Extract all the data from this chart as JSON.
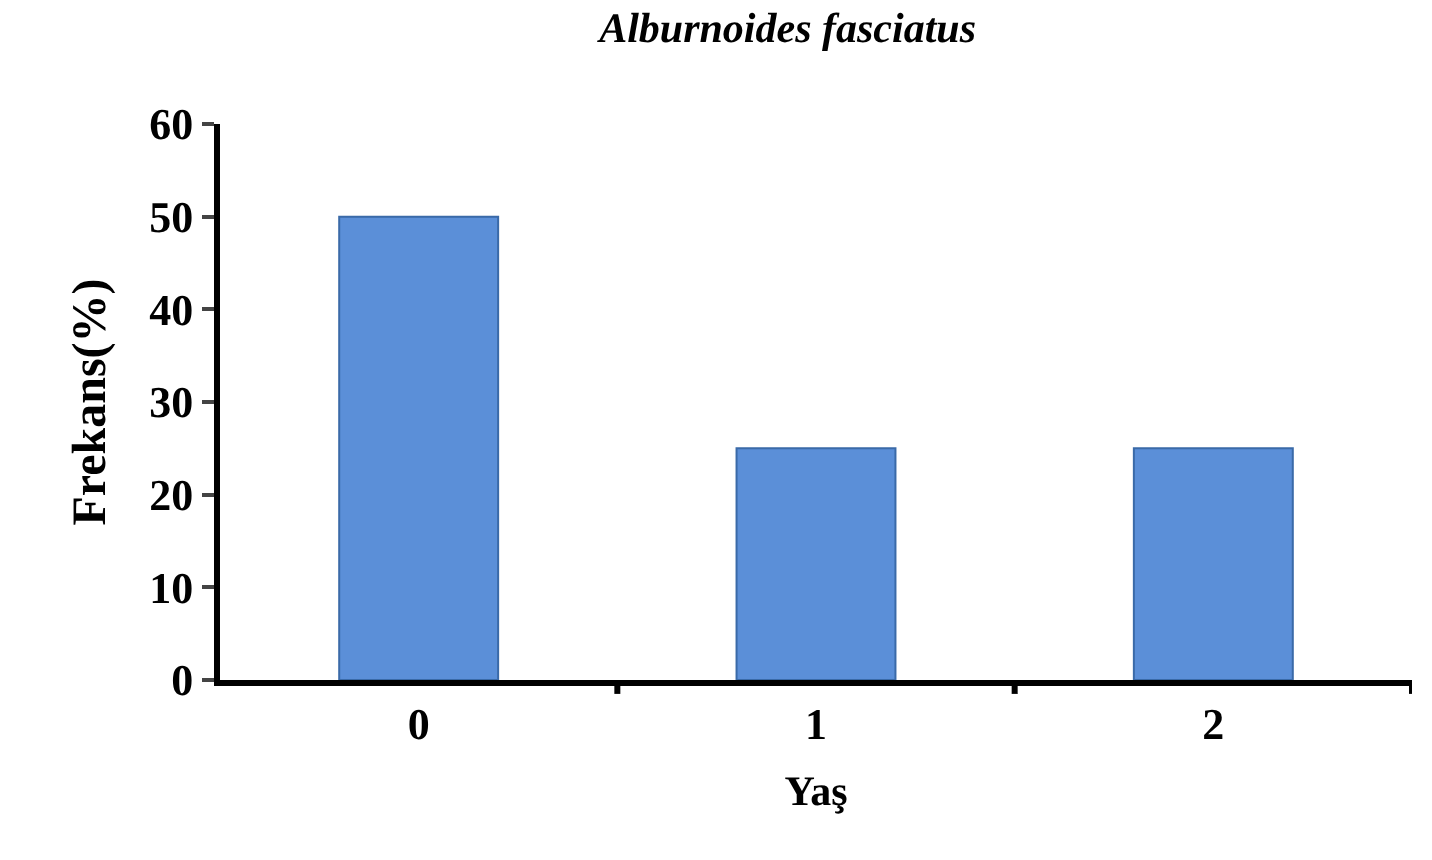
{
  "chart_data": {
    "type": "bar",
    "title": "Alburnoides fasciatus",
    "xlabel": "Yaş",
    "ylabel": "Frekans(%)",
    "categories": [
      "0",
      "1",
      "2"
    ],
    "values": [
      50,
      25,
      25
    ],
    "color": "#5b8fd8",
    "ylim": [
      0,
      60
    ],
    "yticks": [
      0,
      10,
      20,
      30,
      40,
      50,
      60
    ],
    "legend": false
  }
}
